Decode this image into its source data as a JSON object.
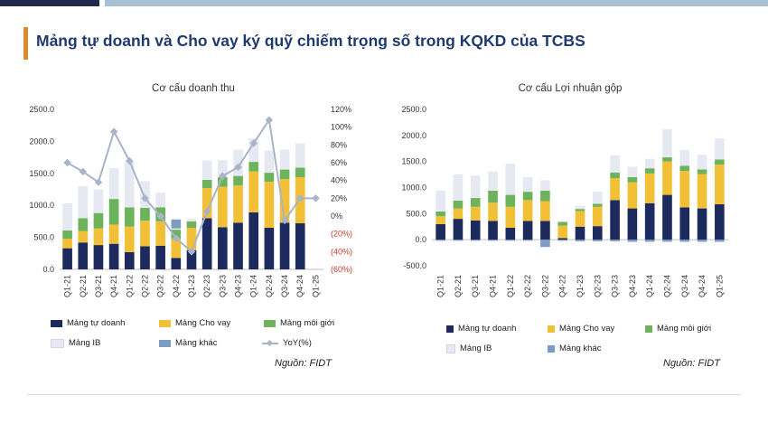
{
  "title": "Mảng tự doanh và Cho vay ký quỹ chiếm trọng số trong KQKD của TCBS",
  "colors": {
    "tu_doanh": "#1c2a5e",
    "cho_vay": "#f2c037",
    "moi_gioi": "#6cb35c",
    "ib": "#e6e9f1",
    "khac": "#7e9bc4",
    "yoy": "#a9b4c8",
    "negative_tick": "#c0392b"
  },
  "chart_data": [
    {
      "type": "bar",
      "stacked": true,
      "title": "Cơ cấu doanh thu",
      "categories": [
        "Q1-21",
        "Q2-21",
        "Q3-21",
        "Q4-21",
        "Q1-22",
        "Q2-22",
        "Q3-22",
        "Q4-22",
        "Q1-23",
        "Q2-23",
        "Q3-23",
        "Q4-23",
        "Q1-24",
        "Q2-24",
        "Q3-24",
        "Q4-24",
        "Q1-25"
      ],
      "y_ticks": [
        "0.0",
        "500.0",
        "1000.0",
        "1500.0",
        "2000.0",
        "2500.0"
      ],
      "ylim": [
        0,
        2500
      ],
      "y2_ticks": [
        "(60%)",
        "(40%)",
        "(20%)",
        "0%",
        "20%",
        "40%",
        "60%",
        "80%",
        "100%",
        "120%"
      ],
      "y2lim": [
        -60,
        120
      ],
      "series": [
        {
          "name": "Mảng tự doanh",
          "key": "tu_doanh",
          "values": [
            330,
            420,
            380,
            400,
            270,
            360,
            370,
            180,
            300,
            800,
            660,
            730,
            890,
            650,
            730,
            720,
            0
          ]
        },
        {
          "name": "Mảng Cho vay",
          "key": "cho_vay",
          "values": [
            150,
            180,
            260,
            300,
            400,
            400,
            380,
            290,
            350,
            470,
            630,
            580,
            640,
            720,
            680,
            720,
            0
          ]
        },
        {
          "name": "Mảng môi giới",
          "key": "moi_gioi",
          "values": [
            130,
            200,
            240,
            400,
            300,
            200,
            220,
            150,
            100,
            130,
            150,
            150,
            150,
            140,
            150,
            150,
            0
          ]
        },
        {
          "name": "Mảng IB",
          "key": "ib",
          "values": [
            420,
            500,
            370,
            480,
            730,
            420,
            230,
            20,
            40,
            300,
            270,
            410,
            370,
            350,
            310,
            380,
            0
          ]
        },
        {
          "name": "Mảng khác",
          "key": "khac",
          "values": [
            0,
            0,
            0,
            0,
            0,
            0,
            0,
            140,
            0,
            0,
            0,
            0,
            0,
            0,
            0,
            0,
            0
          ]
        }
      ],
      "line": {
        "name": "YoY(%)",
        "values": [
          60,
          50,
          38,
          95,
          62,
          20,
          0,
          -25,
          -40,
          5,
          45,
          55,
          82,
          108,
          -5,
          20,
          20
        ]
      }
    },
    {
      "type": "bar",
      "stacked": true,
      "title": "Cơ cấu Lợi nhuận gộp",
      "categories": [
        "Q1-21",
        "Q2-21",
        "Q3-21",
        "Q4-21",
        "Q1-22",
        "Q2-22",
        "Q3-22",
        "Q4-22",
        "Q1-23",
        "Q2-23",
        "Q3-23",
        "Q4-23",
        "Q1-24",
        "Q2-24",
        "Q3-24",
        "Q4-24",
        "Q1-25"
      ],
      "y_ticks": [
        "-500.0",
        "0.0",
        "500.0",
        "1000.0",
        "1500.0",
        "2000.0",
        "2500.0"
      ],
      "ylim": [
        -500,
        2500
      ],
      "series": [
        {
          "name": "Mảng tự doanh",
          "key": "tu_doanh",
          "values": [
            300,
            400,
            370,
            360,
            230,
            360,
            360,
            30,
            250,
            260,
            760,
            600,
            700,
            860,
            620,
            600,
            680
          ]
        },
        {
          "name": "Mảng Cho vay",
          "key": "cho_vay",
          "values": [
            150,
            200,
            260,
            350,
            400,
            400,
            380,
            240,
            300,
            370,
            420,
            500,
            570,
            640,
            700,
            660,
            760
          ]
        },
        {
          "name": "Mảng môi giới",
          "key": "moi_gioi",
          "values": [
            90,
            150,
            170,
            230,
            230,
            160,
            200,
            70,
            40,
            60,
            110,
            100,
            100,
            80,
            100,
            90,
            100
          ]
        },
        {
          "name": "Mảng IB",
          "key": "ib",
          "values": [
            400,
            500,
            430,
            370,
            600,
            280,
            200,
            20,
            60,
            230,
            330,
            200,
            180,
            540,
            300,
            280,
            400
          ]
        },
        {
          "name": "Mảng khác",
          "key": "khac",
          "values": [
            -20,
            -20,
            -20,
            -20,
            -20,
            -20,
            -140,
            -20,
            -30,
            -30,
            -30,
            -40,
            -40,
            -40,
            -40,
            -40,
            -40
          ]
        }
      ]
    }
  ],
  "legend_left": [
    "Mảng tự doanh",
    "Mảng Cho vay",
    "Mảng môi giới",
    "Mảng IB",
    "Mảng khác",
    "YoY(%)"
  ],
  "legend_right": [
    "Mảng tự doanh",
    "Mảng Cho vay",
    "Mảng môi giới",
    "Mảng IB",
    "Mảng khác"
  ],
  "source": "Nguồn: FIDT"
}
